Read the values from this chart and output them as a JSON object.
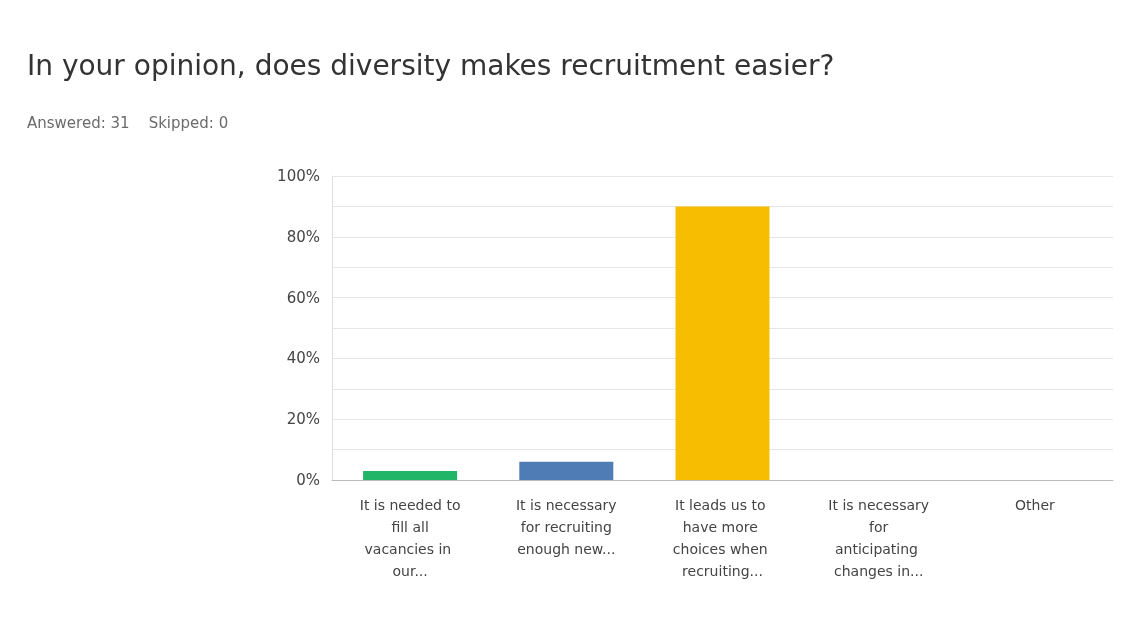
{
  "chart_data": {
    "type": "bar",
    "title": "In your opinion, does diversity makes recruitment easier?",
    "subtitle": "Answered: 31    Skipped: 0",
    "categories": [
      "It is needed to fill all vacancies in our...",
      "It is necessary for recruiting enough new...",
      "It leads us to have more choices when recruiting...",
      "It is necessary for anticipating changes in...",
      "Other"
    ],
    "values": [
      3,
      6,
      90,
      0,
      0
    ],
    "colors": [
      "#21b667",
      "#507cb6",
      "#f7bd00",
      "#d9d9d9",
      "#d9d9d9"
    ],
    "ylim": [
      0,
      100
    ],
    "yticks": [
      {
        "value": 0,
        "label": "0%"
      },
      {
        "value": 10,
        "label": null
      },
      {
        "value": 20,
        "label": "20%"
      },
      {
        "value": 30,
        "label": null
      },
      {
        "value": 40,
        "label": "40%"
      },
      {
        "value": 50,
        "label": null
      },
      {
        "value": 60,
        "label": "60%"
      },
      {
        "value": 70,
        "label": null
      },
      {
        "value": 80,
        "label": "80%"
      },
      {
        "value": 90,
        "label": null
      },
      {
        "value": 100,
        "label": "100%"
      }
    ],
    "grid": "y"
  }
}
